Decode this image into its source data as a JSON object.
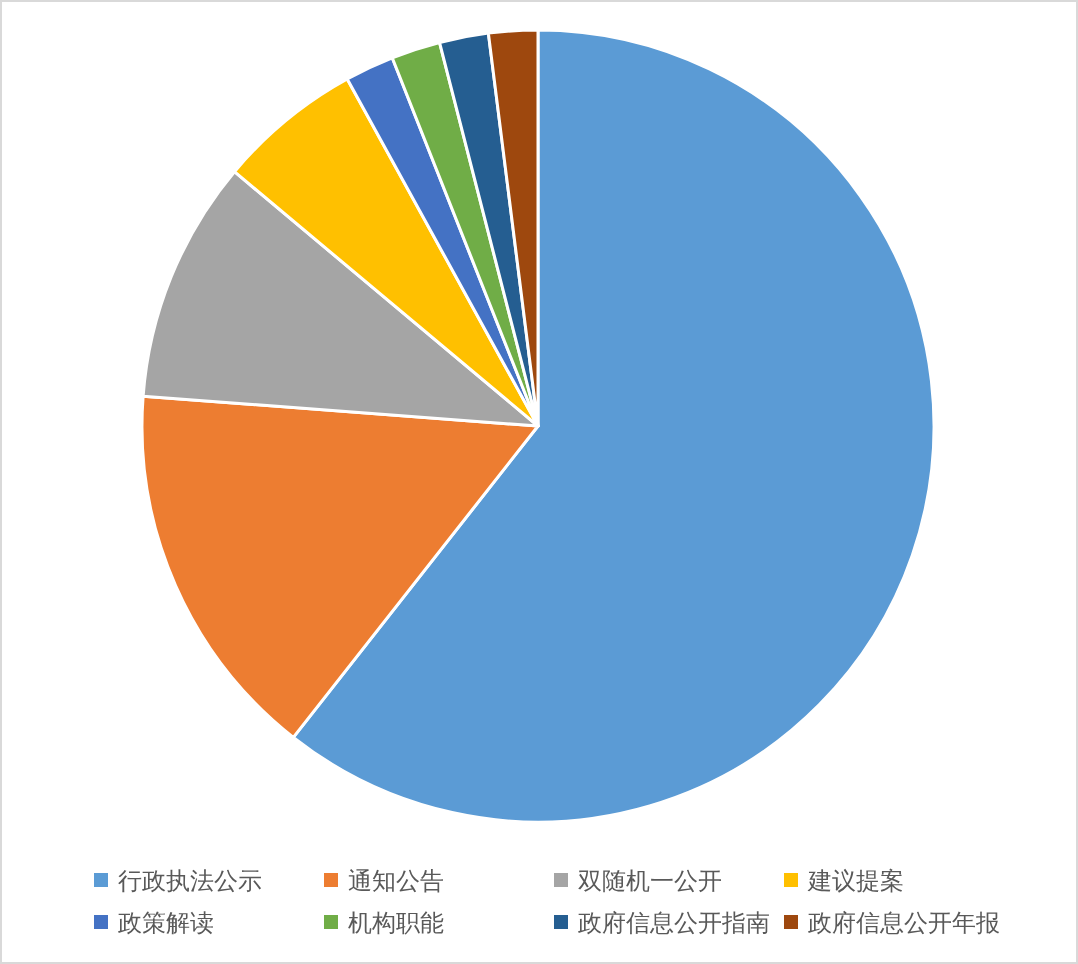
{
  "chart_data": {
    "type": "pie",
    "categories": [
      "行政执法公示",
      "通知公告",
      "双随机一公开",
      "建议提案",
      "政策解读",
      "机构职能",
      "政府信息公开指南",
      "政府信息公开年报"
    ],
    "values": [
      60.6,
      15.6,
      9.9,
      5.9,
      2,
      2,
      2,
      2
    ],
    "colors": [
      "#5b9bd5",
      "#ed7d31",
      "#a5a5a5",
      "#ffc000",
      "#4472c4",
      "#70ad47",
      "#255e91",
      "#9e480e"
    ],
    "legend": "bottom"
  }
}
